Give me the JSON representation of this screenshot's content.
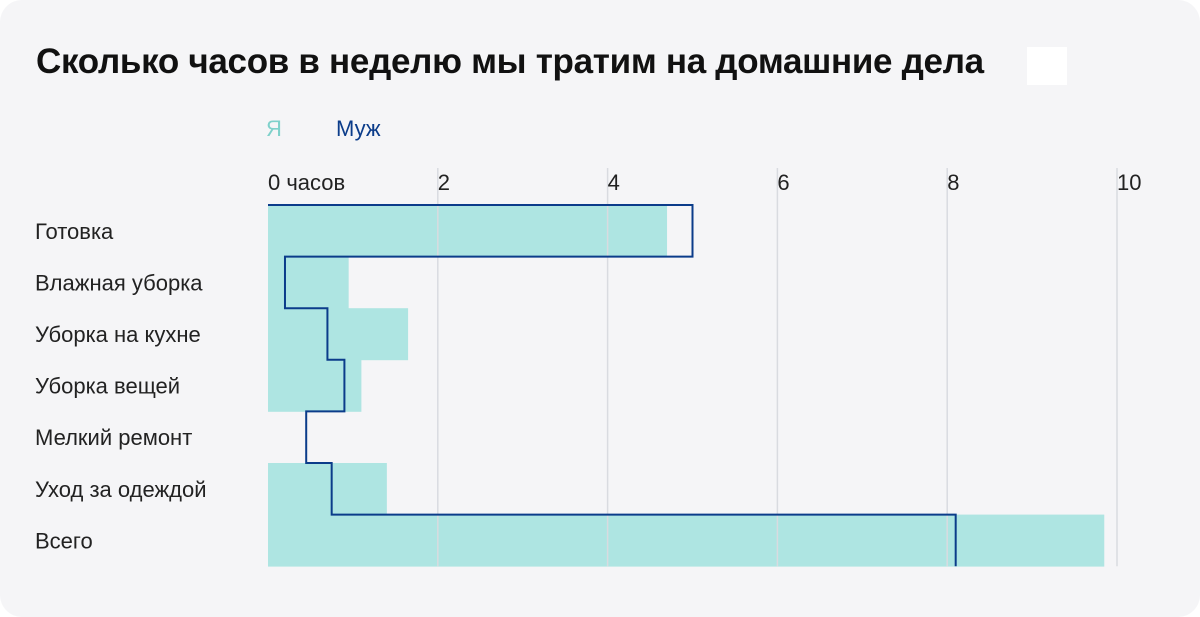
{
  "title": "Сколько часов в неделю мы тратим на домашние дела",
  "colors": {
    "me": "#aee5e2",
    "husband": "#0b3c8a",
    "grid": "#d9dbe0",
    "text": "#222222",
    "me_legend": "#7fd1cb"
  },
  "chart_data": {
    "type": "bar",
    "title": "Сколько часов в неделю мы тратим на домашние дела",
    "legend": {
      "placement": "top-left",
      "orientation": "horizontal"
    },
    "orientation": "horizontal",
    "categories": [
      "Готовка",
      "Влажная уборка",
      "Уборка на кухне",
      "Уборка вещей",
      "Мелкий ремонт",
      "Уход за одеждой",
      "Всего"
    ],
    "series": [
      {
        "name": "Я",
        "style": "bars",
        "values": [
          4.7,
          0.95,
          1.65,
          1.1,
          0,
          1.4,
          9.85
        ]
      },
      {
        "name": "Муж",
        "style": "step-line",
        "values": [
          5.0,
          0.2,
          0.7,
          0.9,
          0.45,
          0.75,
          8.1
        ]
      }
    ],
    "x_ticks": [
      {
        "value": 0,
        "label": "0 часов"
      },
      {
        "value": 2,
        "label": "2"
      },
      {
        "value": 4,
        "label": "4"
      },
      {
        "value": 6,
        "label": "6"
      },
      {
        "value": 8,
        "label": "8"
      },
      {
        "value": 10,
        "label": "10"
      }
    ],
    "xlim": [
      0,
      10
    ],
    "grid": true
  }
}
